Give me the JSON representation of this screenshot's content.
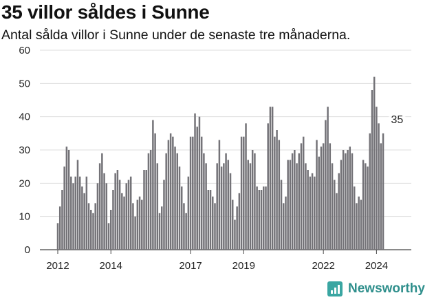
{
  "title": "35 villor såldes i Sunne",
  "subtitle": "Antal sålda villor i Sunne under de senaste tre månaderna.",
  "brand": "Newsworthy",
  "colors": {
    "bar": "#747378",
    "highlight": "#3aa6a2",
    "grid": "#dddddd"
  },
  "chart_data": {
    "type": "bar",
    "title": "35 villor såldes i Sunne",
    "subtitle": "Antal sålda villor i Sunne under de senaste tre månaderna.",
    "xlabel": "",
    "ylabel": "",
    "ylim": [
      0,
      60
    ],
    "yticks": [
      "0",
      "10",
      "20",
      "30",
      "40",
      "50",
      "60"
    ],
    "grid": true,
    "x_start": "2012-01",
    "x_end": "2024-10",
    "xticks": [
      {
        "label": "2012",
        "month": "2012-01"
      },
      {
        "label": "2014",
        "month": "2014-01"
      },
      {
        "label": "2017",
        "month": "2017-01"
      },
      {
        "label": "2019",
        "month": "2019-01"
      },
      {
        "label": "2022",
        "month": "2022-01"
      },
      {
        "label": "2024",
        "month": "2024-01"
      }
    ],
    "values": [
      8,
      13,
      18,
      25,
      31,
      30,
      22,
      20,
      22,
      27,
      22,
      19,
      17,
      22,
      14,
      12,
      11,
      14,
      20,
      26,
      29,
      23,
      20,
      8,
      12,
      18,
      23,
      24,
      21,
      17,
      16,
      20,
      21,
      22,
      14,
      10,
      15,
      16,
      15,
      24,
      24,
      29,
      30,
      39,
      35,
      26,
      11,
      13,
      21,
      29,
      33,
      35,
      34,
      31,
      29,
      25,
      19,
      14,
      11,
      22,
      34,
      34,
      41,
      37,
      40,
      34,
      29,
      26,
      18,
      18,
      16,
      14,
      26,
      33,
      25,
      26,
      29,
      27,
      23,
      15,
      9,
      13,
      17,
      34,
      34,
      38,
      27,
      26,
      30,
      29,
      19,
      18,
      18,
      19,
      19,
      38,
      43,
      43,
      34,
      36,
      33,
      21,
      14,
      16,
      27,
      27,
      29,
      30,
      26,
      29,
      32,
      34,
      26,
      24,
      22,
      23,
      22,
      33,
      28,
      31,
      32,
      39,
      43,
      32,
      26,
      21,
      17,
      23,
      27,
      30,
      29,
      30,
      31,
      29,
      19,
      14,
      16,
      15,
      27,
      26,
      25,
      35,
      48,
      52,
      43,
      38,
      32,
      35
    ],
    "highlight_index": 153,
    "annotations": [
      {
        "text": "35",
        "index": 153,
        "value": 35
      }
    ]
  }
}
